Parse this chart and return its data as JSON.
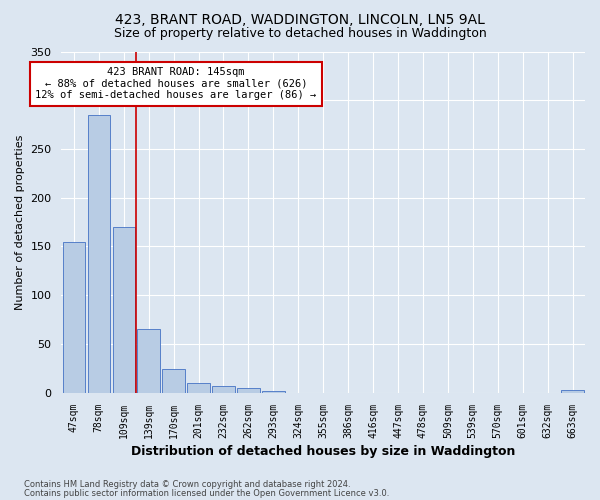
{
  "title1": "423, BRANT ROAD, WADDINGTON, LINCOLN, LN5 9AL",
  "title2": "Size of property relative to detached houses in Waddington",
  "xlabel": "Distribution of detached houses by size in Waddington",
  "ylabel": "Number of detached properties",
  "footnote1": "Contains HM Land Registry data © Crown copyright and database right 2024.",
  "footnote2": "Contains public sector information licensed under the Open Government Licence v3.0.",
  "categories": [
    "47sqm",
    "78sqm",
    "109sqm",
    "139sqm",
    "170sqm",
    "201sqm",
    "232sqm",
    "262sqm",
    "293sqm",
    "324sqm",
    "355sqm",
    "386sqm",
    "416sqm",
    "447sqm",
    "478sqm",
    "509sqm",
    "539sqm",
    "570sqm",
    "601sqm",
    "632sqm",
    "663sqm"
  ],
  "values": [
    155,
    285,
    170,
    65,
    24,
    10,
    7,
    5,
    2,
    0,
    0,
    0,
    0,
    0,
    0,
    0,
    0,
    0,
    0,
    0,
    3
  ],
  "bar_color": "#b8cce4",
  "bar_edge_color": "#4472c4",
  "background_color": "#dce6f1",
  "grid_color": "#ffffff",
  "red_line_index": 2.5,
  "annotation_line1": "423 BRANT ROAD: 145sqm",
  "annotation_line2": "← 88% of detached houses are smaller (626)",
  "annotation_line3": "12% of semi-detached houses are larger (86) →",
  "annotation_box_color": "#ffffff",
  "annotation_box_edge": "#cc0000",
  "ylim": [
    0,
    350
  ],
  "yticks": [
    0,
    50,
    100,
    150,
    200,
    250,
    300,
    350
  ]
}
